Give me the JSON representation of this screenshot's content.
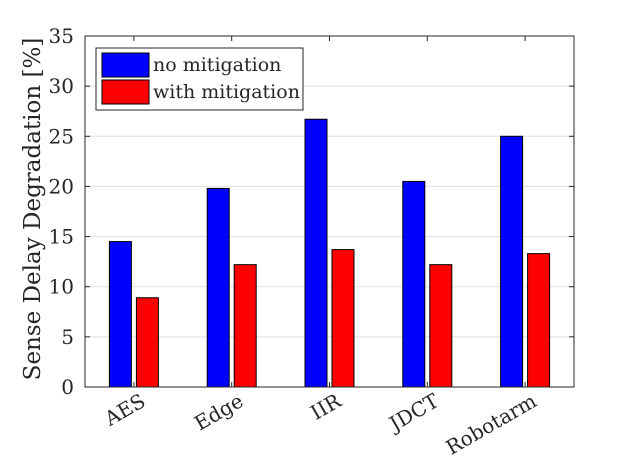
{
  "chart_data": {
    "type": "bar",
    "title": "",
    "xlabel": "",
    "ylabel": "Sense Delay Degradation [%]",
    "categories": [
      "AES",
      "Edge",
      "IIR",
      "JDCT",
      "Robotarm"
    ],
    "series": [
      {
        "name": "no mitigation",
        "color": "#0000ff",
        "values": [
          14.5,
          19.8,
          26.7,
          20.5,
          25.0
        ]
      },
      {
        "name": "with mitigation",
        "color": "#ff0000",
        "values": [
          8.9,
          12.2,
          13.7,
          12.2,
          13.3
        ]
      }
    ],
    "ylim": [
      0,
      35
    ],
    "yticks": [
      0,
      5,
      10,
      15,
      20,
      25,
      30,
      35
    ],
    "grid": true,
    "legend_position": "top-left"
  }
}
